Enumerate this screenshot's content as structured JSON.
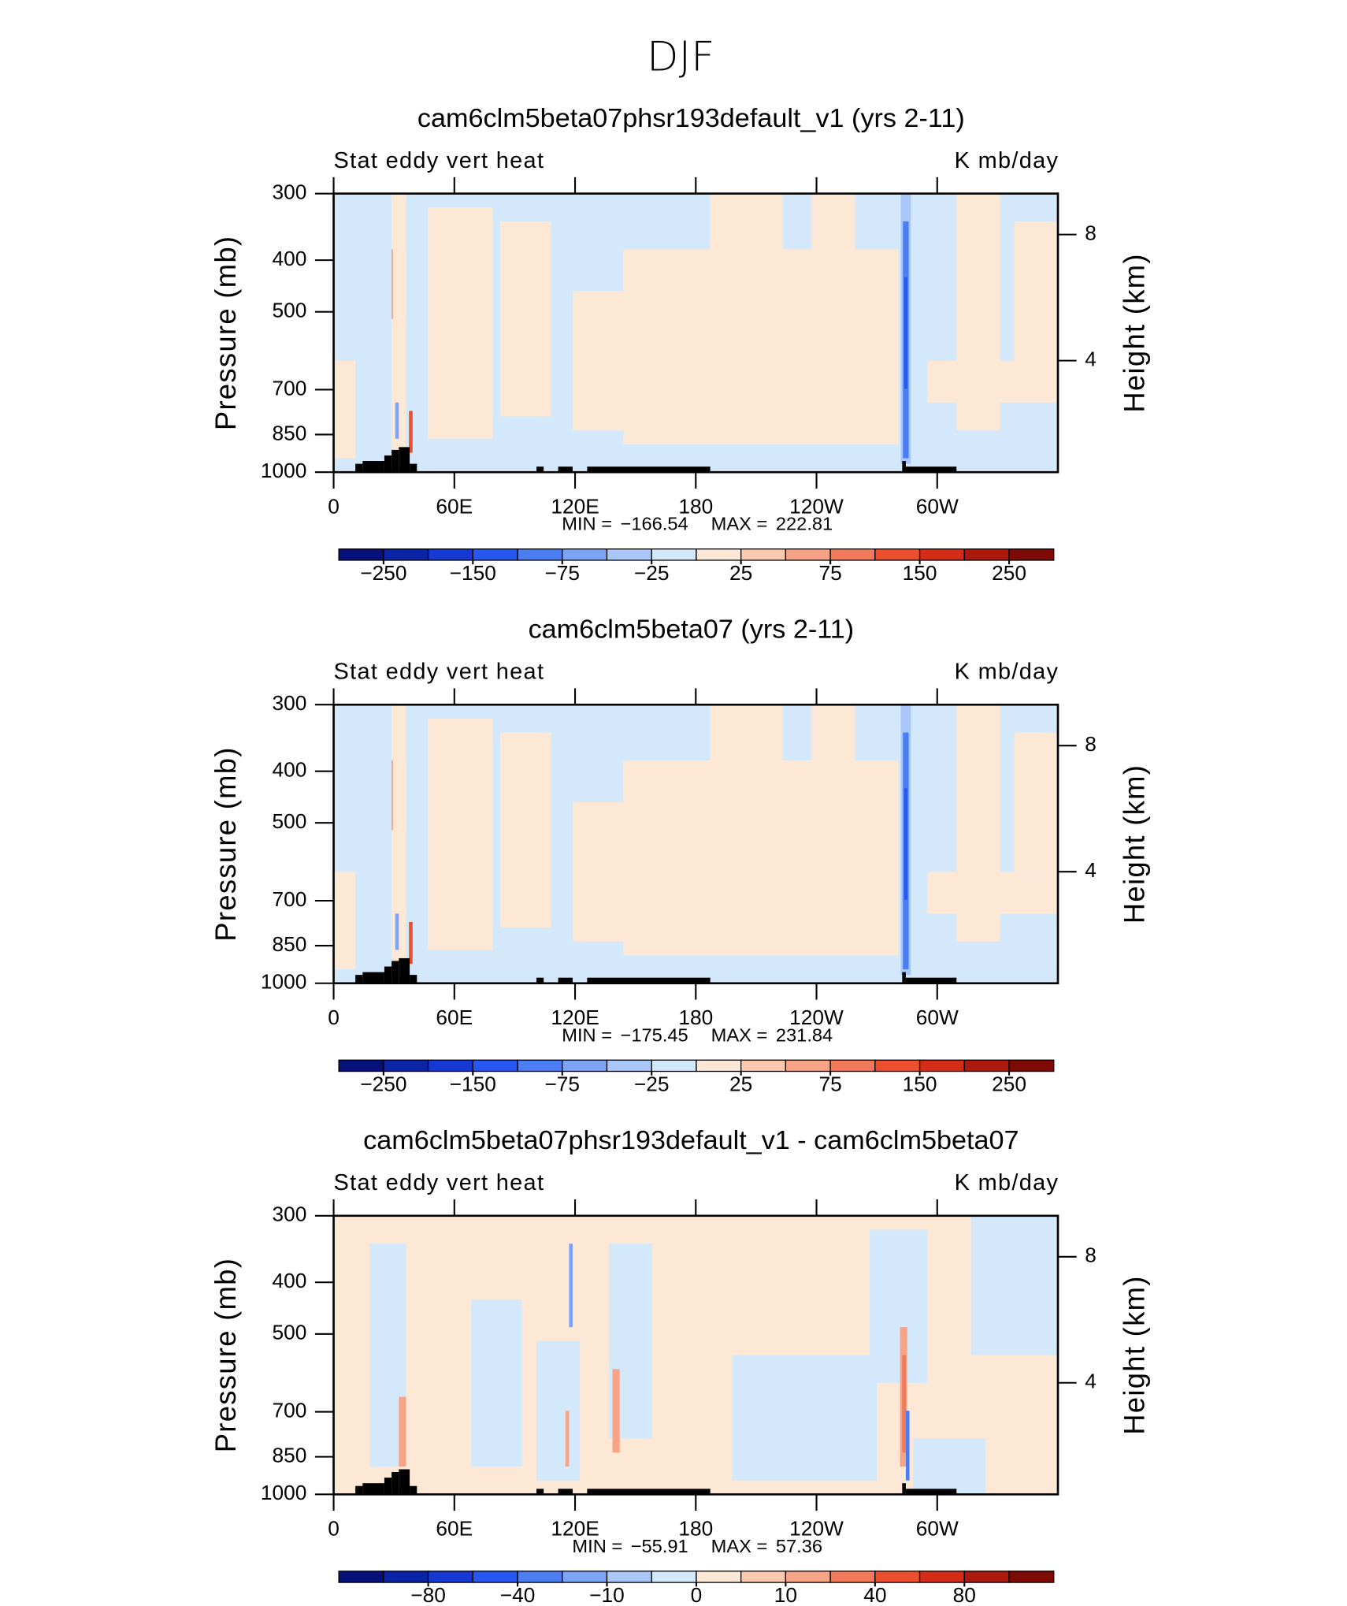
{
  "title": "DJF",
  "chart_data": [
    {
      "type": "contour",
      "title": "cam6clm5beta07phsr193default_v1 (yrs 2-11)",
      "left_label": "Stat eddy vert heat",
      "right_label": "K mb/day",
      "ylabel": "Pressure (mb)",
      "y2label": "Height (km)",
      "ylim": [
        1000,
        300
      ],
      "ylog": true,
      "yticks": [
        300,
        400,
        500,
        700,
        850,
        1000
      ],
      "y2lim": [
        0.46,
        9.3
      ],
      "y2ticks": [
        4,
        8
      ],
      "xlim": [
        0,
        360
      ],
      "xticks": [
        0,
        {
          "value": 60,
          "label": "60E"
        },
        {
          "value": 120,
          "label": "120E"
        },
        180,
        {
          "value": 240,
          "label": "120W"
        },
        {
          "value": 300,
          "label": "60W"
        }
      ],
      "min_label": "MIN =",
      "min": {
        "value": -166.54,
        "label": "−166.54"
      },
      "max_label": "MAX =",
      "max": 222.81,
      "colors": [
        "#06107a",
        "#0a24a8",
        "#1539d2",
        "#2657f0",
        "#4a7ef2",
        "#7ca4f5",
        "#a9c7f8",
        "#d4e8fb",
        "#fde8d6",
        "#fbc9ae",
        "#f7a486",
        "#f27a5a",
        "#eb4f2e",
        "#d42c16",
        "#ac1a0d",
        "#7d0a05"
      ],
      "levels": [
        {
          "value": -250,
          "label": "−250"
        },
        null,
        {
          "value": -150,
          "label": "−150"
        },
        null,
        {
          "value": -75,
          "label": "−75"
        },
        null,
        {
          "value": -25,
          "label": "−25"
        },
        null,
        25,
        null,
        75,
        null,
        150,
        null,
        250
      ]
    },
    {
      "type": "contour",
      "title": "cam6clm5beta07 (yrs 2-11)",
      "left_label": "Stat eddy vert heat",
      "right_label": "K mb/day",
      "ylabel": "Pressure (mb)",
      "y2label": "Height (km)",
      "ylim": [
        1000,
        300
      ],
      "ylog": true,
      "yticks": [
        300,
        400,
        500,
        700,
        850,
        1000
      ],
      "y2lim": [
        0.46,
        9.3
      ],
      "y2ticks": [
        4,
        8
      ],
      "xlim": [
        0,
        360
      ],
      "xticks": [
        0,
        {
          "value": 60,
          "label": "60E"
        },
        {
          "value": 120,
          "label": "120E"
        },
        180,
        {
          "value": 240,
          "label": "120W"
        },
        {
          "value": 300,
          "label": "60W"
        }
      ],
      "min_label": "MIN =",
      "min": {
        "value": -175.45,
        "label": "−175.45"
      },
      "max_label": "MAX =",
      "max": 231.84,
      "colors": [
        "#06107a",
        "#0a24a8",
        "#1539d2",
        "#2657f0",
        "#4a7ef2",
        "#7ca4f5",
        "#a9c7f8",
        "#d4e8fb",
        "#fde8d6",
        "#fbc9ae",
        "#f7a486",
        "#f27a5a",
        "#eb4f2e",
        "#d42c16",
        "#ac1a0d",
        "#7d0a05"
      ],
      "levels": [
        {
          "value": -250,
          "label": "−250"
        },
        null,
        {
          "value": -150,
          "label": "−150"
        },
        null,
        {
          "value": -75,
          "label": "−75"
        },
        null,
        {
          "value": -25,
          "label": "−25"
        },
        null,
        25,
        null,
        75,
        null,
        150,
        null,
        250
      ]
    },
    {
      "type": "contour",
      "title": "cam6clm5beta07phsr193default_v1 - cam6clm5beta07",
      "left_label": "Stat eddy vert heat",
      "right_label": "K mb/day",
      "ylabel": "Pressure (mb)",
      "y2label": "Height (km)",
      "ylim": [
        1000,
        300
      ],
      "ylog": true,
      "yticks": [
        300,
        400,
        500,
        700,
        850,
        1000
      ],
      "y2lim": [
        0.46,
        9.3
      ],
      "y2ticks": [
        4,
        8
      ],
      "xlim": [
        0,
        360
      ],
      "xticks": [
        0,
        {
          "value": 60,
          "label": "60E"
        },
        {
          "value": 120,
          "label": "120E"
        },
        180,
        {
          "value": 240,
          "label": "120W"
        },
        {
          "value": 300,
          "label": "60W"
        }
      ],
      "min_label": "MIN =",
      "min": {
        "value": -55.91,
        "label": "−55.91"
      },
      "max_label": "MAX =",
      "max": 57.36,
      "colors": [
        "#06107a",
        "#0a24a8",
        "#1539d2",
        "#2657f0",
        "#4a7ef2",
        "#7ca4f5",
        "#a9c7f8",
        "#d4e8fb",
        "#fde8d6",
        "#fbc9ae",
        "#f7a486",
        "#f27a5a",
        "#eb4f2e",
        "#d42c16",
        "#ac1a0d",
        "#7d0a05"
      ],
      "levels": [
        null,
        {
          "value": -80,
          "label": "−80"
        },
        null,
        {
          "value": -40,
          "label": "−40"
        },
        null,
        {
          "value": -10,
          "label": "−10"
        },
        null,
        0,
        null,
        10,
        null,
        40,
        null,
        80,
        null
      ]
    }
  ]
}
